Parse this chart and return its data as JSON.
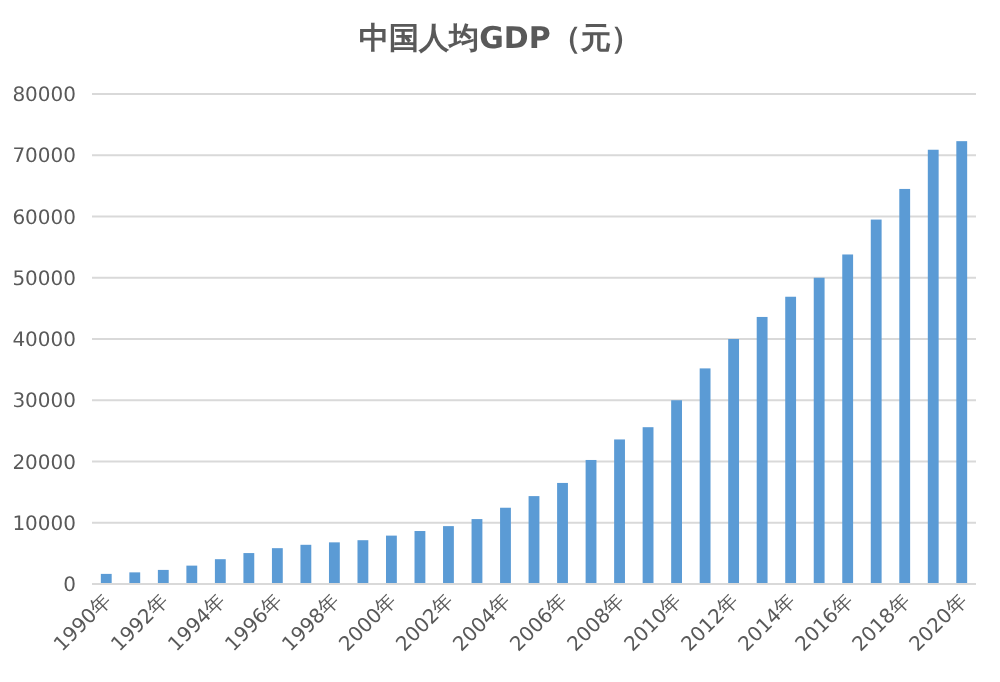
{
  "chart_data": {
    "type": "bar",
    "title": "中国人均GDP（元）",
    "categories": [
      "1990年",
      null,
      "1992年",
      null,
      "1994年",
      null,
      "1996年",
      null,
      "1998年",
      null,
      "2000年",
      null,
      "2002年",
      null,
      "2004年",
      null,
      "2006年",
      null,
      "2008年",
      null,
      "2010年",
      null,
      "2012年",
      null,
      "2014年",
      null,
      "2016年",
      null,
      "2018年",
      null,
      "2020年"
    ],
    "values": [
      1650,
      1900,
      2300,
      3000,
      4050,
      5050,
      5850,
      6400,
      6800,
      7150,
      7900,
      8650,
      9450,
      10600,
      12450,
      14350,
      16500,
      20250,
      23600,
      25600,
      30000,
      35200,
      40000,
      43600,
      46900,
      50000,
      53800,
      59500,
      64500,
      70900,
      72300
    ],
    "color": "#5b9bd5",
    "ylim": [
      0,
      80000
    ],
    "yticks": [
      0,
      10000,
      20000,
      30000,
      40000,
      50000,
      60000,
      70000,
      80000
    ],
    "grid": "y"
  }
}
